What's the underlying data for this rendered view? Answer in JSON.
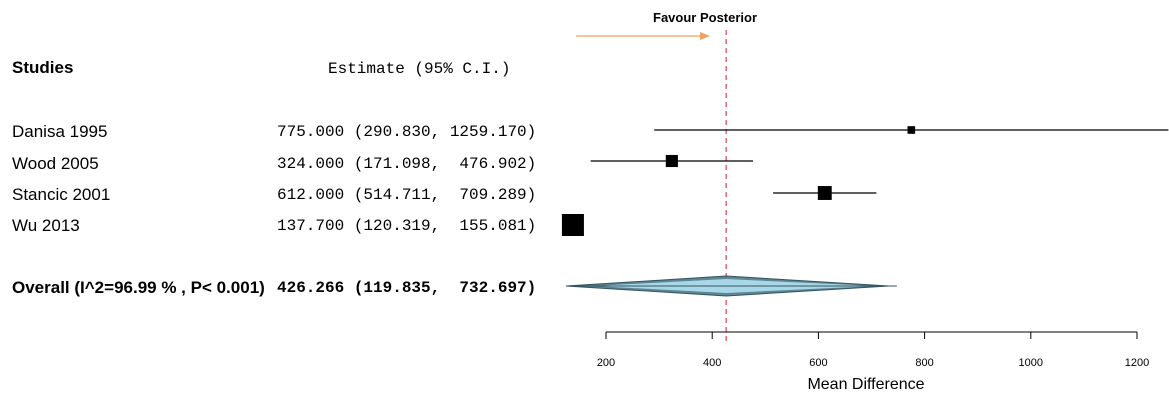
{
  "header": {
    "studies_label": "Studies",
    "estimate_label": "Estimate (95% C.I.)"
  },
  "favour_label": "Favour Posterior",
  "colors": {
    "favour_arrow": "#f0a060",
    "reference_line": "#e0505a",
    "diamond_fill": "#a8d8e8",
    "ci_line": "#000000"
  },
  "chart_data": {
    "type": "forest",
    "xlabel": "Mean Difference",
    "xlim": [
      140,
      1240
    ],
    "xticks": [
      200,
      400,
      600,
      800,
      1000,
      1200
    ],
    "reference_line": 426.266,
    "studies": [
      {
        "name": "Danisa 1995",
        "estimate": 775.0,
        "lower": 290.83,
        "upper": 1259.17,
        "estimate_text": "775.000 (290.830, 1259.170)",
        "weight": 0.2
      },
      {
        "name": "Wood 2005",
        "estimate": 324.0,
        "lower": 171.098,
        "upper": 476.902,
        "estimate_text": "324.000 (171.098,  476.902)",
        "weight": 0.45
      },
      {
        "name": "Stancic 2001",
        "estimate": 612.0,
        "lower": 514.711,
        "upper": 709.289,
        "estimate_text": "612.000 (514.711,  709.289)",
        "weight": 0.55
      },
      {
        "name": "Wu 2013",
        "estimate": 137.7,
        "lower": 120.319,
        "upper": 155.081,
        "estimate_text": "137.700 (120.319,  155.081)",
        "weight": 1.0
      }
    ],
    "overall": {
      "name": "Overall (I^2=96.99 % , P< 0.001)",
      "estimate": 426.266,
      "lower": 119.835,
      "upper": 732.697,
      "estimate_text": "426.266 (119.835,  732.697)"
    }
  }
}
